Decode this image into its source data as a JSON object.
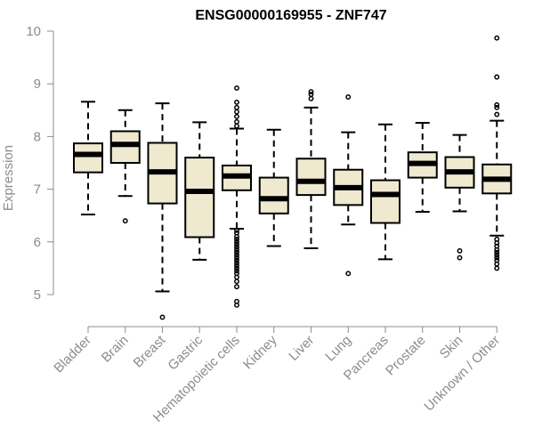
{
  "chart_data": {
    "type": "boxplot",
    "title": "ENSG00000169955 - ZNF747",
    "xlabel": "",
    "ylabel": "Expression",
    "ylim": [
      4.5,
      10
    ],
    "yticks": [
      5,
      6,
      7,
      8,
      9,
      10
    ],
    "tick_labels": [
      "5",
      "6",
      "7",
      "8",
      "9",
      "10"
    ],
    "colors": {
      "box_fill": "#efe9d0",
      "stroke": "#000000",
      "axis": "#8c8c8c"
    },
    "categories": [
      "Bladder",
      "Brain",
      "Breast",
      "Gastric",
      "Hematopoietic cells",
      "Kidney",
      "Liver",
      "Lung",
      "Pancreas",
      "Prostate",
      "Skin",
      "Unknown / Other"
    ],
    "boxes": [
      {
        "name": "Bladder",
        "whislo": 6.52,
        "q1": 7.32,
        "med": 7.66,
        "q3": 7.87,
        "whishi": 8.66,
        "fliers": []
      },
      {
        "name": "Brain",
        "whislo": 6.87,
        "q1": 7.5,
        "med": 7.85,
        "q3": 8.1,
        "whishi": 8.5,
        "fliers": [
          6.4
        ]
      },
      {
        "name": "Breast",
        "whislo": 5.06,
        "q1": 6.73,
        "med": 7.33,
        "q3": 7.88,
        "whishi": 8.63,
        "fliers": [
          4.57
        ]
      },
      {
        "name": "Gastric",
        "whislo": 5.66,
        "q1": 6.09,
        "med": 6.96,
        "q3": 7.6,
        "whishi": 8.27,
        "fliers": []
      },
      {
        "name": "Hematopoietic cells",
        "whislo": 6.25,
        "q1": 6.98,
        "med": 7.25,
        "q3": 7.45,
        "whishi": 8.15,
        "fliers": [
          8.92,
          8.65,
          8.55,
          8.47,
          8.38,
          8.28,
          8.2,
          6.22,
          6.17,
          6.1,
          6.05,
          6.0,
          5.95,
          5.9,
          5.85,
          5.8,
          5.75,
          5.7,
          5.65,
          5.6,
          5.55,
          5.5,
          5.45,
          5.4,
          5.33,
          5.25,
          5.15,
          4.87,
          4.8
        ]
      },
      {
        "name": "Kidney",
        "whislo": 5.92,
        "q1": 6.54,
        "med": 6.82,
        "q3": 7.22,
        "whishi": 8.13,
        "fliers": []
      },
      {
        "name": "Liver",
        "whislo": 5.88,
        "q1": 6.89,
        "med": 7.15,
        "q3": 7.58,
        "whishi": 8.55,
        "fliers": [
          8.85,
          8.8,
          8.72
        ]
      },
      {
        "name": "Lung",
        "whislo": 6.33,
        "q1": 6.7,
        "med": 7.03,
        "q3": 7.37,
        "whishi": 8.08,
        "fliers": [
          8.75,
          5.4
        ]
      },
      {
        "name": "Pancreas",
        "whislo": 5.67,
        "q1": 6.36,
        "med": 6.9,
        "q3": 7.17,
        "whishi": 8.23,
        "fliers": []
      },
      {
        "name": "Prostate",
        "whislo": 6.57,
        "q1": 7.22,
        "med": 7.49,
        "q3": 7.7,
        "whishi": 8.26,
        "fliers": []
      },
      {
        "name": "Skin",
        "whislo": 6.58,
        "q1": 7.03,
        "med": 7.33,
        "q3": 7.61,
        "whishi": 8.03,
        "fliers": [
          5.83,
          5.7
        ]
      },
      {
        "name": "Unknown / Other",
        "whislo": 6.12,
        "q1": 6.92,
        "med": 7.19,
        "q3": 7.47,
        "whishi": 8.3,
        "fliers": [
          9.87,
          9.13,
          8.6,
          8.55,
          8.42,
          6.05,
          5.98,
          5.92,
          5.85,
          5.8,
          5.75,
          5.7,
          5.65,
          5.58,
          5.5
        ]
      }
    ]
  }
}
